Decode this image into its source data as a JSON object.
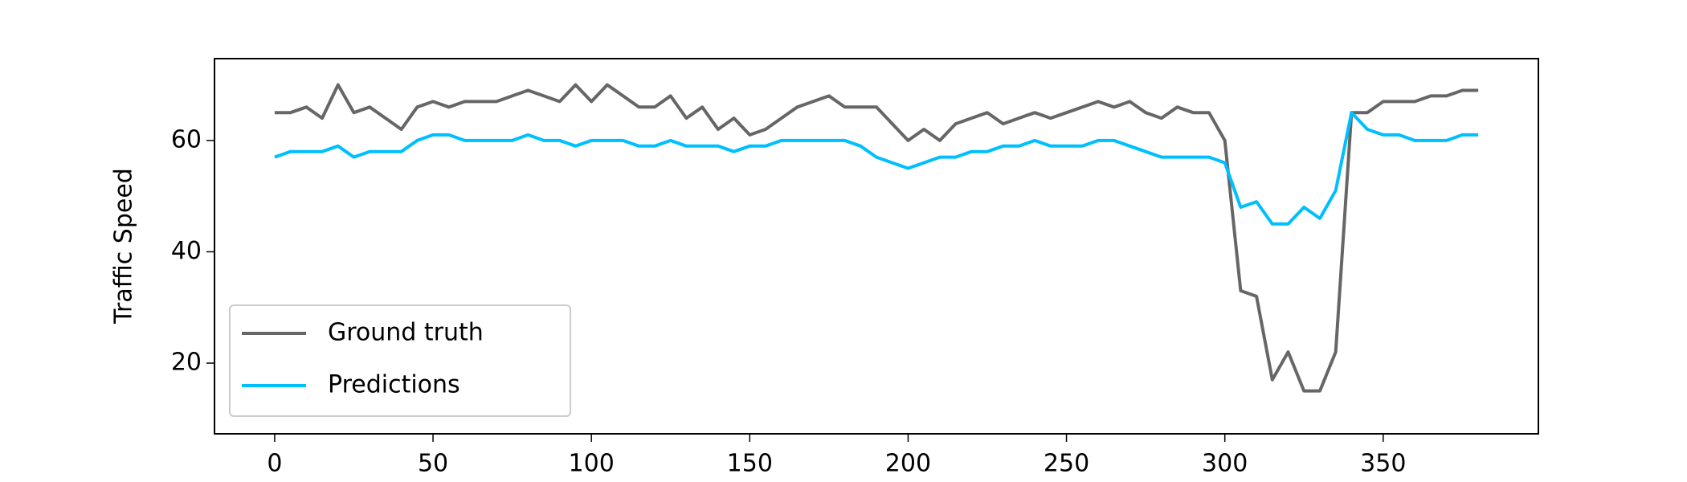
{
  "chart_data": {
    "type": "line",
    "y_label": "Traffic Speed",
    "x": [
      0,
      5,
      10,
      15,
      20,
      25,
      30,
      35,
      40,
      45,
      50,
      55,
      60,
      65,
      70,
      75,
      80,
      85,
      90,
      95,
      100,
      105,
      110,
      115,
      120,
      125,
      130,
      135,
      140,
      145,
      150,
      155,
      160,
      165,
      170,
      175,
      180,
      185,
      190,
      195,
      200,
      205,
      210,
      215,
      220,
      225,
      230,
      235,
      240,
      245,
      250,
      255,
      260,
      265,
      270,
      275,
      280,
      285,
      290,
      295,
      300,
      305,
      310,
      315,
      320,
      325,
      330,
      335,
      340,
      345,
      350,
      355,
      360,
      365,
      370,
      375,
      380
    ],
    "series": [
      {
        "name": "Ground truth",
        "color": "#666666",
        "values": [
          65,
          65,
          66,
          64,
          70,
          65,
          66,
          64,
          62,
          66,
          67,
          66,
          67,
          67,
          67,
          68,
          69,
          68,
          67,
          70,
          67,
          70,
          68,
          66,
          66,
          68,
          64,
          66,
          62,
          64,
          61,
          62,
          64,
          66,
          67,
          68,
          66,
          66,
          66,
          63,
          60,
          62,
          60,
          63,
          64,
          65,
          63,
          64,
          65,
          64,
          65,
          66,
          67,
          66,
          67,
          65,
          64,
          66,
          65,
          65,
          60,
          33,
          32,
          17,
          22,
          15,
          15,
          22,
          65,
          65,
          67,
          67,
          67,
          68,
          68,
          69,
          69
        ]
      },
      {
        "name": "Predictions",
        "color": "#00bfff",
        "values": [
          57,
          58,
          58,
          58,
          59,
          57,
          58,
          58,
          58,
          60,
          61,
          61,
          60,
          60,
          60,
          60,
          61,
          60,
          60,
          59,
          60,
          60,
          60,
          59,
          59,
          60,
          59,
          59,
          59,
          58,
          59,
          59,
          60,
          60,
          60,
          60,
          60,
          59,
          57,
          56,
          55,
          56,
          57,
          57,
          58,
          58,
          59,
          59,
          60,
          59,
          59,
          59,
          60,
          60,
          59,
          58,
          57,
          57,
          57,
          57,
          56,
          48,
          49,
          45,
          45,
          48,
          46,
          51,
          65,
          62,
          61,
          61,
          60,
          60,
          60,
          61,
          61
        ]
      }
    ],
    "xlim": [
      -19,
      399
    ],
    "ylim": [
      7.3,
      74.7
    ],
    "xticks": [
      0,
      50,
      100,
      150,
      200,
      250,
      300,
      350
    ],
    "yticks": [
      20,
      40,
      60
    ],
    "grid": false,
    "legend": "lower left"
  }
}
